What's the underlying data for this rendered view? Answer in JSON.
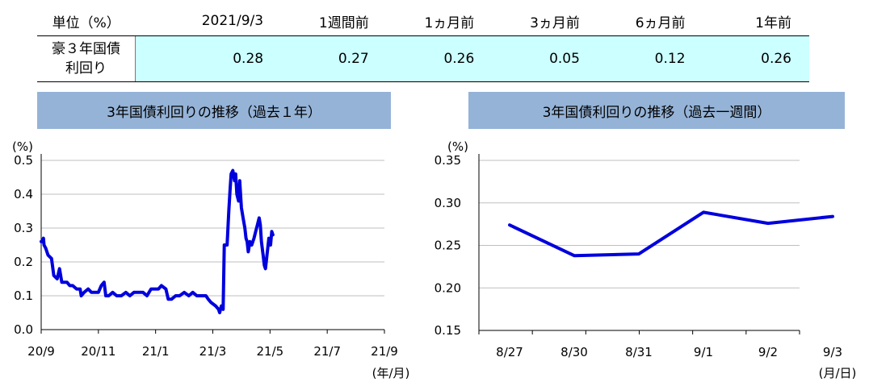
{
  "table": {
    "header_label": "単位（%）",
    "columns": [
      "2021/9/3",
      "1週間前",
      "1ヵ月前",
      "3ヵ月前",
      "6ヵ月前",
      "1年前"
    ],
    "row_label_line1": "豪３年国債",
    "row_label_line2": "利回り",
    "values": [
      "0.28",
      "0.27",
      "0.26",
      "0.05",
      "0.12",
      "0.26"
    ]
  },
  "colors": {
    "line": "#0000dd",
    "title_bg": "#95b3d7",
    "value_bg": "#ccffff",
    "grid": "#bfbfbf"
  },
  "chart_data": [
    {
      "type": "line",
      "title": "3年国債利回りの推移（過去１年）",
      "ylabel": "(%)",
      "xlabel": "(年/月)",
      "ylim": [
        0.0,
        0.5
      ],
      "yticks": [
        "0.0",
        "0.1",
        "0.2",
        "0.3",
        "0.4",
        "0.5"
      ],
      "xtick_labels": [
        "20/9",
        "20/11",
        "21/1",
        "21/3",
        "21/5",
        "21/7",
        "21/9"
      ],
      "grid": true,
      "series": [
        {
          "points": [
            [
              0.0,
              0.26
            ],
            [
              0.02,
              0.26
            ],
            [
              0.04,
              0.27
            ],
            [
              0.05,
              0.25
            ],
            [
              0.08,
              0.24
            ],
            [
              0.12,
              0.22
            ],
            [
              0.18,
              0.21
            ],
            [
              0.22,
              0.16
            ],
            [
              0.28,
              0.15
            ],
            [
              0.32,
              0.18
            ],
            [
              0.36,
              0.14
            ],
            [
              0.4,
              0.14
            ],
            [
              0.45,
              0.14
            ],
            [
              0.5,
              0.13
            ],
            [
              0.55,
              0.13
            ],
            [
              0.62,
              0.12
            ],
            [
              0.68,
              0.12
            ],
            [
              0.7,
              0.1
            ],
            [
              0.75,
              0.11
            ],
            [
              0.82,
              0.12
            ],
            [
              0.88,
              0.11
            ],
            [
              0.95,
              0.11
            ],
            [
              1.0,
              0.11
            ],
            [
              1.05,
              0.13
            ],
            [
              1.1,
              0.14
            ],
            [
              1.13,
              0.1
            ],
            [
              1.18,
              0.1
            ],
            [
              1.25,
              0.11
            ],
            [
              1.32,
              0.1
            ],
            [
              1.4,
              0.1
            ],
            [
              1.48,
              0.11
            ],
            [
              1.55,
              0.1
            ],
            [
              1.62,
              0.11
            ],
            [
              1.7,
              0.11
            ],
            [
              1.78,
              0.11
            ],
            [
              1.85,
              0.1
            ],
            [
              1.92,
              0.12
            ],
            [
              2.0,
              0.12
            ],
            [
              2.05,
              0.12
            ],
            [
              2.1,
              0.13
            ],
            [
              2.18,
              0.12
            ],
            [
              2.22,
              0.09
            ],
            [
              2.28,
              0.09
            ],
            [
              2.35,
              0.1
            ],
            [
              2.42,
              0.1
            ],
            [
              2.5,
              0.11
            ],
            [
              2.58,
              0.1
            ],
            [
              2.65,
              0.11
            ],
            [
              2.72,
              0.1
            ],
            [
              2.8,
              0.1
            ],
            [
              2.88,
              0.1
            ],
            [
              2.92,
              0.09
            ],
            [
              2.97,
              0.08
            ],
            [
              3.05,
              0.07
            ],
            [
              3.1,
              0.06
            ],
            [
              3.12,
              0.05
            ],
            [
              3.15,
              0.07
            ],
            [
              3.18,
              0.06
            ],
            [
              3.2,
              0.25
            ],
            [
              3.25,
              0.25
            ],
            [
              3.28,
              0.35
            ],
            [
              3.3,
              0.41
            ],
            [
              3.32,
              0.46
            ],
            [
              3.35,
              0.47
            ],
            [
              3.38,
              0.44
            ],
            [
              3.4,
              0.46
            ],
            [
              3.42,
              0.4
            ],
            [
              3.45,
              0.38
            ],
            [
              3.47,
              0.44
            ],
            [
              3.5,
              0.36
            ],
            [
              3.53,
              0.33
            ],
            [
              3.56,
              0.3
            ],
            [
              3.58,
              0.27
            ],
            [
              3.6,
              0.26
            ],
            [
              3.62,
              0.23
            ],
            [
              3.65,
              0.26
            ],
            [
              3.68,
              0.25
            ],
            [
              3.7,
              0.26
            ],
            [
              3.72,
              0.27
            ],
            [
              3.75,
              0.29
            ],
            [
              3.78,
              0.31
            ],
            [
              3.81,
              0.33
            ],
            [
              3.83,
              0.31
            ],
            [
              3.85,
              0.26
            ],
            [
              3.88,
              0.22
            ],
            [
              3.9,
              0.19
            ],
            [
              3.92,
              0.18
            ],
            [
              3.94,
              0.21
            ],
            [
              3.96,
              0.24
            ],
            [
              3.98,
              0.27
            ],
            [
              4.0,
              0.26
            ],
            [
              4.01,
              0.25
            ],
            [
              4.03,
              0.29
            ],
            [
              4.05,
              0.28
            ]
          ]
        }
      ]
    },
    {
      "type": "line",
      "title": "3年国債利回りの推移（過去一週間）",
      "ylabel": "(%)",
      "xlabel": "(月/日)",
      "ylim": [
        0.15,
        0.35
      ],
      "yticks": [
        "0.15",
        "0.20",
        "0.25",
        "0.30",
        "0.35"
      ],
      "categories": [
        "8/27",
        "8/30",
        "8/31",
        "9/1",
        "9/2",
        "9/3"
      ],
      "grid": true,
      "series": [
        {
          "values": [
            0.274,
            0.238,
            0.24,
            0.289,
            0.276,
            0.284
          ]
        }
      ]
    }
  ]
}
